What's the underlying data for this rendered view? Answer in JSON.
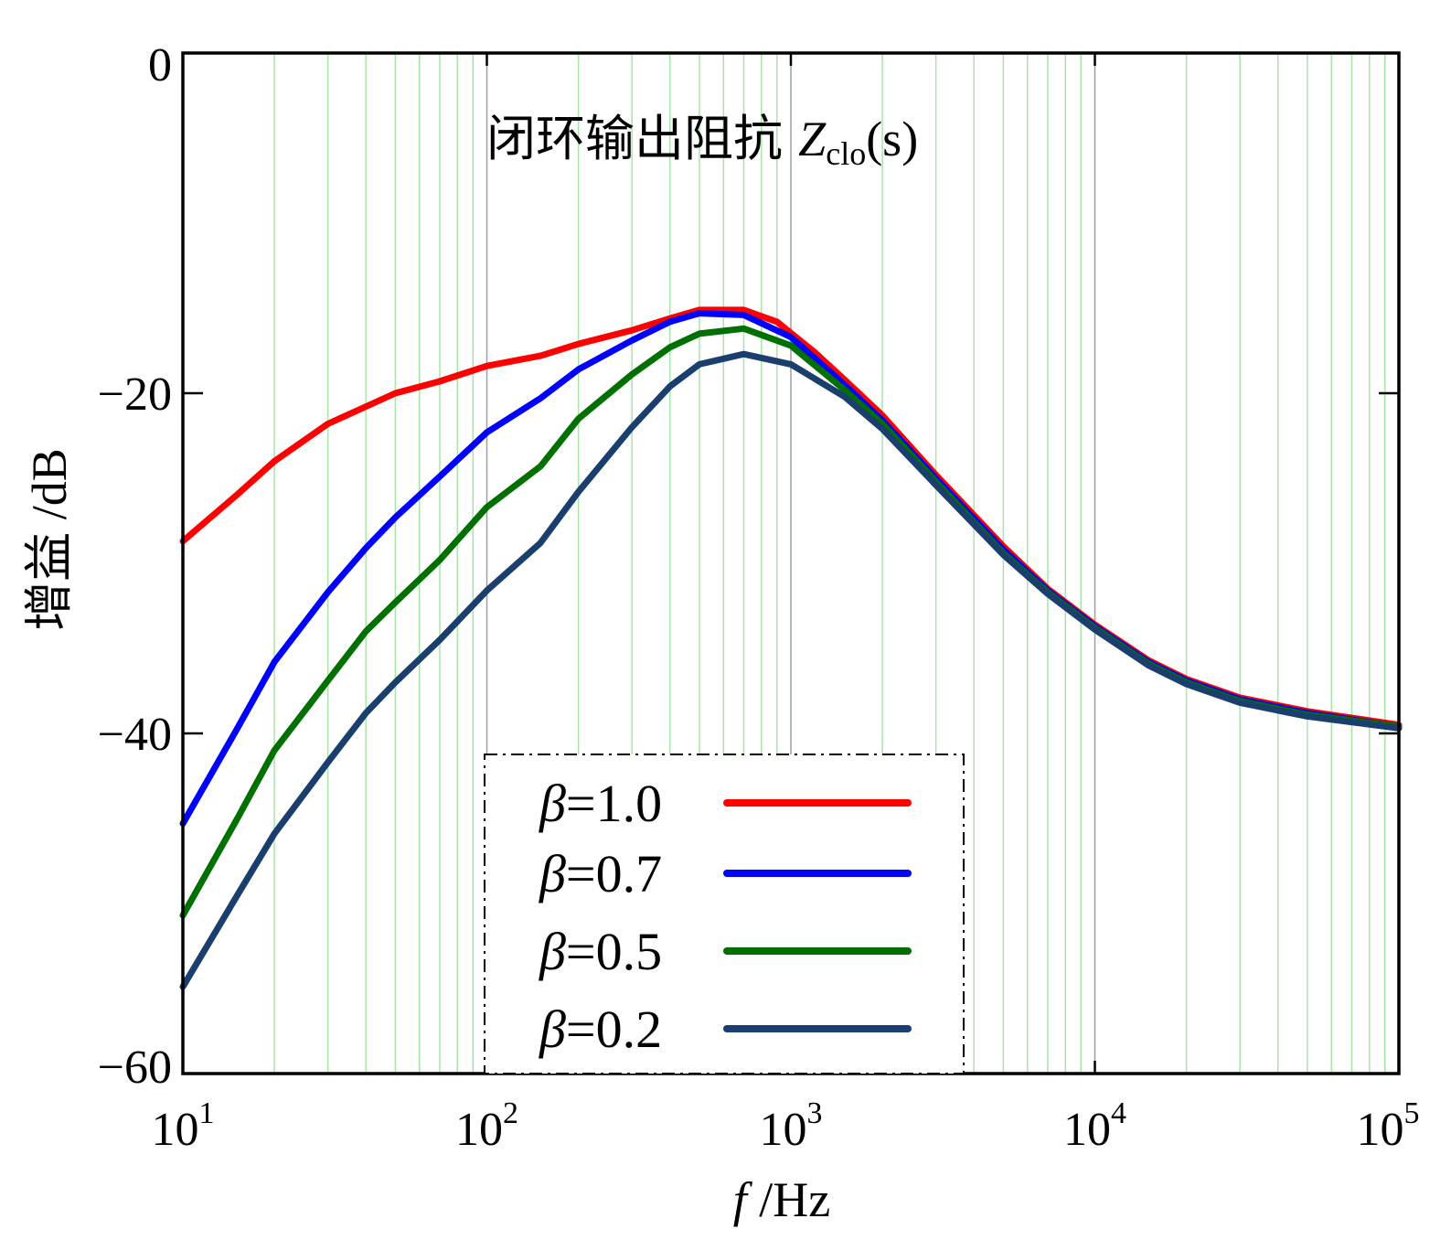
{
  "chart_data": {
    "type": "line",
    "title_prefix": "闭环输出阻抗 ",
    "title_var": "Z",
    "title_sub": "clo",
    "title_suffix": "(s)",
    "xlabel_var": "f",
    "xlabel_unit": " /Hz",
    "ylabel": "增益 /dB",
    "xscale": "log",
    "xlim": [
      10,
      100000
    ],
    "ylim": [
      -60,
      0
    ],
    "yticks": [
      "0",
      "−20",
      "−40",
      "−60"
    ],
    "xticks": [
      {
        "base": "10",
        "exp": "1"
      },
      {
        "base": "10",
        "exp": "2"
      },
      {
        "base": "10",
        "exp": "3"
      },
      {
        "base": "10",
        "exp": "4"
      },
      {
        "base": "10",
        "exp": "5"
      }
    ],
    "grid": true,
    "legend_placement": "bottom-center",
    "series": [
      {
        "name": "β=1.0",
        "label_symbol": "β",
        "label_value": "=1.0",
        "color": "#ff0000",
        "points": [
          [
            10,
            -28.7
          ],
          [
            15,
            -26.0
          ],
          [
            20,
            -24.0
          ],
          [
            30,
            -21.8
          ],
          [
            50,
            -20.0
          ],
          [
            70,
            -19.3
          ],
          [
            100,
            -18.4
          ],
          [
            150,
            -17.8
          ],
          [
            200,
            -17.1
          ],
          [
            300,
            -16.3
          ],
          [
            400,
            -15.6
          ],
          [
            500,
            -15.1
          ],
          [
            700,
            -15.1
          ],
          [
            900,
            -15.8
          ],
          [
            1200,
            -17.6
          ],
          [
            1500,
            -19.2
          ],
          [
            2000,
            -21.3
          ],
          [
            3000,
            -24.8
          ],
          [
            5000,
            -29.0
          ],
          [
            7000,
            -31.5
          ],
          [
            10000,
            -33.6
          ],
          [
            15000,
            -35.7
          ],
          [
            20000,
            -36.8
          ],
          [
            30000,
            -37.9
          ],
          [
            50000,
            -38.7
          ],
          [
            100000,
            -39.5
          ]
        ]
      },
      {
        "name": "β=0.7",
        "label_symbol": "β",
        "label_value": "=0.7",
        "color": "#0000ff",
        "points": [
          [
            10,
            -45.3
          ],
          [
            15,
            -39.8
          ],
          [
            20,
            -35.8
          ],
          [
            30,
            -31.7
          ],
          [
            40,
            -29.1
          ],
          [
            50,
            -27.3
          ],
          [
            70,
            -24.9
          ],
          [
            100,
            -22.3
          ],
          [
            150,
            -20.3
          ],
          [
            200,
            -18.6
          ],
          [
            300,
            -16.9
          ],
          [
            400,
            -15.8
          ],
          [
            500,
            -15.3
          ],
          [
            700,
            -15.4
          ],
          [
            1000,
            -16.7
          ],
          [
            1500,
            -19.5
          ],
          [
            2000,
            -21.6
          ],
          [
            3000,
            -25.0
          ],
          [
            5000,
            -29.2
          ],
          [
            7000,
            -31.6
          ],
          [
            10000,
            -33.7
          ],
          [
            15000,
            -35.8
          ],
          [
            20000,
            -36.9
          ],
          [
            30000,
            -38.0
          ],
          [
            50000,
            -38.8
          ],
          [
            100000,
            -39.6
          ]
        ]
      },
      {
        "name": "β=0.5",
        "label_symbol": "β",
        "label_value": "=0.5",
        "color": "#007000",
        "points": [
          [
            10,
            -50.7
          ],
          [
            15,
            -45.1
          ],
          [
            20,
            -41.0
          ],
          [
            30,
            -36.9
          ],
          [
            40,
            -34.0
          ],
          [
            50,
            -32.3
          ],
          [
            70,
            -29.8
          ],
          [
            100,
            -26.7
          ],
          [
            150,
            -24.3
          ],
          [
            200,
            -21.5
          ],
          [
            300,
            -18.9
          ],
          [
            400,
            -17.3
          ],
          [
            500,
            -16.5
          ],
          [
            700,
            -16.2
          ],
          [
            1000,
            -17.2
          ],
          [
            1500,
            -19.8
          ],
          [
            2000,
            -21.8
          ],
          [
            3000,
            -25.2
          ],
          [
            5000,
            -29.4
          ],
          [
            7000,
            -31.7
          ],
          [
            10000,
            -33.8
          ],
          [
            15000,
            -35.9
          ],
          [
            20000,
            -37.0
          ],
          [
            30000,
            -38.1
          ],
          [
            50000,
            -38.9
          ],
          [
            100000,
            -39.6
          ]
        ]
      },
      {
        "name": "β=0.2",
        "label_symbol": "β",
        "label_value": "=0.2",
        "color": "#1a3f6f",
        "points": [
          [
            10,
            -54.9
          ],
          [
            15,
            -49.6
          ],
          [
            20,
            -45.9
          ],
          [
            30,
            -41.7
          ],
          [
            40,
            -38.8
          ],
          [
            50,
            -37.0
          ],
          [
            70,
            -34.5
          ],
          [
            100,
            -31.6
          ],
          [
            150,
            -28.8
          ],
          [
            200,
            -25.8
          ],
          [
            300,
            -22.0
          ],
          [
            400,
            -19.6
          ],
          [
            500,
            -18.3
          ],
          [
            700,
            -17.7
          ],
          [
            1000,
            -18.3
          ],
          [
            1500,
            -20.2
          ],
          [
            2000,
            -22.1
          ],
          [
            3000,
            -25.4
          ],
          [
            5000,
            -29.5
          ],
          [
            7000,
            -31.8
          ],
          [
            10000,
            -33.9
          ],
          [
            15000,
            -36.0
          ],
          [
            20000,
            -37.1
          ],
          [
            30000,
            -38.2
          ],
          [
            50000,
            -39.0
          ],
          [
            100000,
            -39.7
          ]
        ]
      }
    ]
  }
}
